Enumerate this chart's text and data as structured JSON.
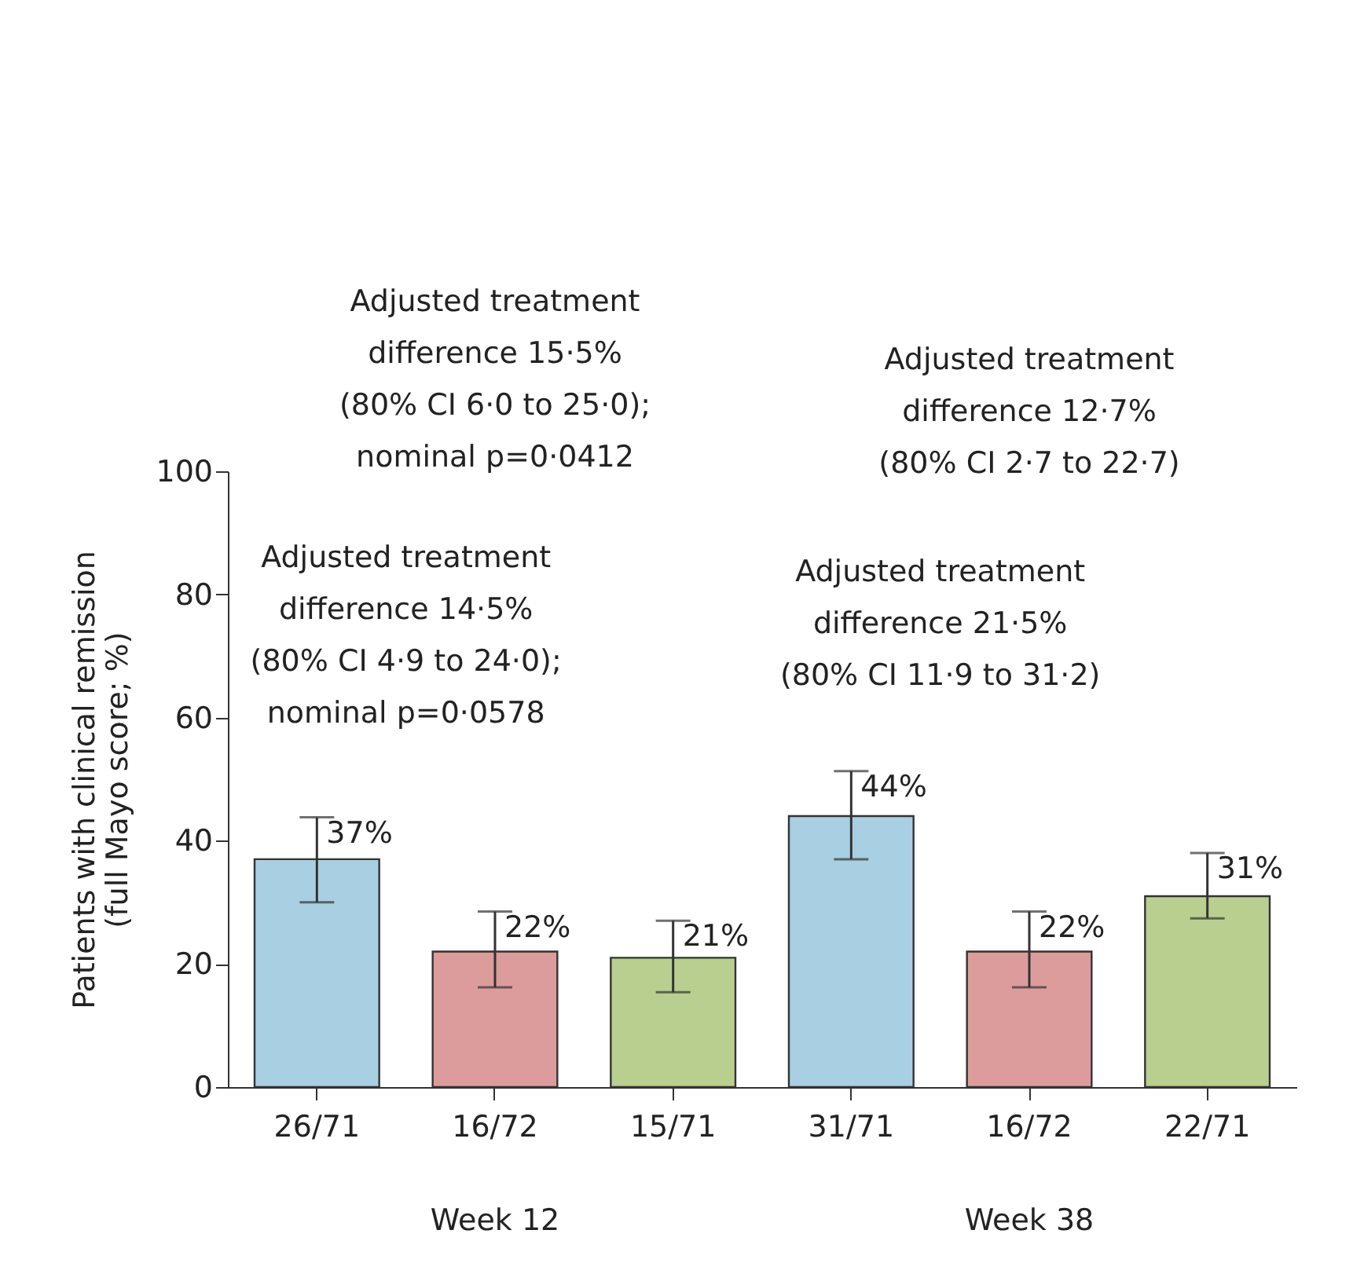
{
  "chart_data": {
    "type": "bar",
    "ylabel": "Patients with clinical remission\n(full Mayo score; %)",
    "categories": [
      "26/71",
      "16/72",
      "15/71",
      "31/71",
      "16/72",
      "22/71"
    ],
    "values": [
      37,
      22,
      21,
      44,
      22,
      31
    ],
    "colors": [
      "#a8cfe2",
      "#dd9c9c",
      "#b8cf8f",
      "#a8cfe2",
      "#dd9c9c",
      "#b8cf8f"
    ],
    "errors": [
      [
        30,
        43.8
      ],
      [
        16.2,
        28.5
      ],
      [
        15.4,
        27
      ],
      [
        37,
        51.3
      ],
      [
        16.2,
        28.5
      ],
      [
        27.4,
        38
      ]
    ],
    "value_labels": [
      "37%",
      "22%",
      "21%",
      "44%",
      "22%",
      "31%"
    ],
    "ylim": [
      0,
      100
    ],
    "yticks": [
      0,
      20,
      40,
      60,
      80,
      100
    ],
    "grid": false,
    "annotations": [
      "Adjusted treatment\ndifference 15·5%\n(80% CI 6·0 to 25·0);\nnominal p=0·0412",
      "Adjusted treatment\ndifference 14·5%\n(80% CI 4·9 to 24·0);\nnominal p=0·0578",
      "Adjusted treatment\ndifference 12·7%\n(80% CI 2·7 to 22·7)",
      "Adjusted treatment\ndifference 21·5%\n(80% CI 11·9 to 31·2)",
      "Week 12",
      "Week 38"
    ]
  }
}
